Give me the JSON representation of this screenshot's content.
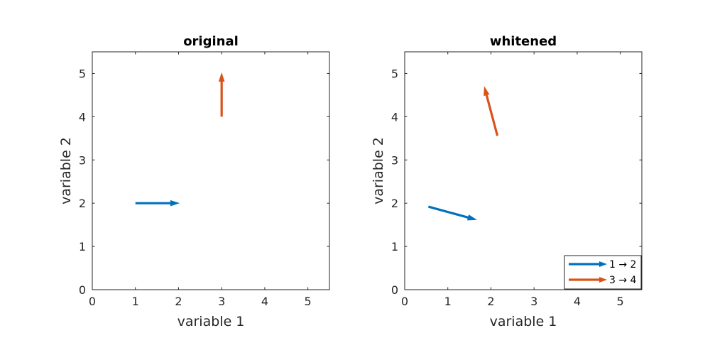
{
  "chart_data": [
    {
      "type": "quiver",
      "title": "original",
      "xlabel": "variable 1",
      "ylabel": "variable 2",
      "xlim": [
        0,
        5.5
      ],
      "ylim": [
        0,
        5.5
      ],
      "xticks": [
        0,
        1,
        2,
        3,
        4,
        5
      ],
      "yticks": [
        0,
        1,
        2,
        3,
        4,
        5
      ],
      "grid": false,
      "series": [
        {
          "color": "#0072BD",
          "x0": 1,
          "y0": 2,
          "x1": 2,
          "y1": 2
        },
        {
          "color": "#D95319",
          "x0": 3,
          "y0": 4,
          "x1": 3,
          "y1": 5
        }
      ]
    },
    {
      "type": "quiver",
      "title": "whitened",
      "xlabel": "variable 1",
      "ylabel": "variable 2",
      "xlim": [
        0,
        5.5
      ],
      "ylim": [
        0,
        5.5
      ],
      "xticks": [
        0,
        1,
        2,
        3,
        4,
        5
      ],
      "yticks": [
        0,
        1,
        2,
        3,
        4,
        5
      ],
      "grid": false,
      "legend_position": "bottom-right",
      "series": [
        {
          "name": "1 → 2",
          "color": "#0072BD",
          "x0": 0.55,
          "y0": 1.92,
          "x1": 1.65,
          "y1": 1.62
        },
        {
          "name": "3 → 4",
          "color": "#D95319",
          "x0": 2.15,
          "y0": 3.56,
          "x1": 1.85,
          "y1": 4.68
        }
      ]
    }
  ]
}
